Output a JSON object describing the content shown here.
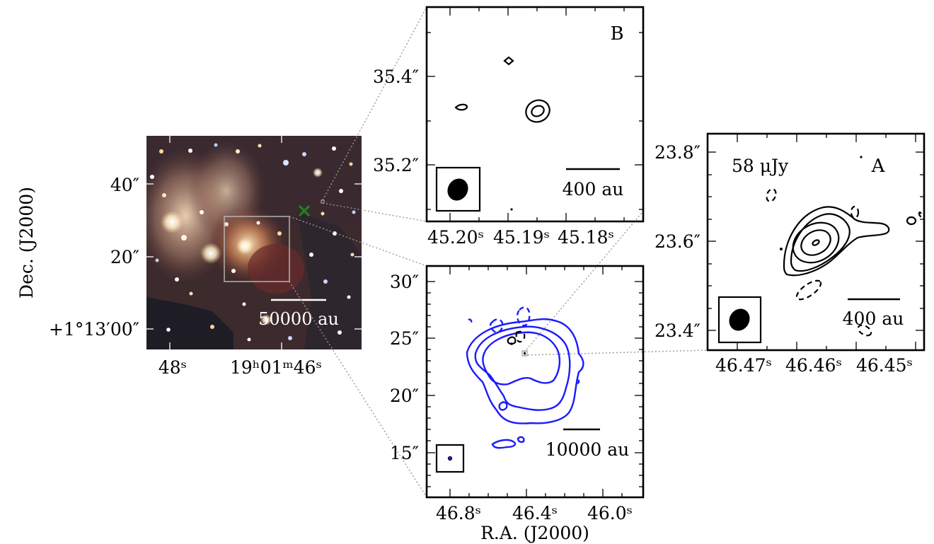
{
  "axis_labels": {
    "y": "Dec. (J2000)",
    "x": "R.A. (J2000)"
  },
  "colors": {
    "contour_black": "#000000",
    "contour_blue": "#1a1aff",
    "source_marker": "#1a8a1a",
    "zoom_lines": "#999999"
  },
  "image_panel": {
    "y_ticks": [
      "40″",
      "20″",
      "+1°13′00″"
    ],
    "x_ticks": [
      "48ˢ",
      "19ʰ01ᵐ46ˢ"
    ],
    "scalebar": "50000 au"
  },
  "panel_b": {
    "label": "B",
    "y_ticks": [
      "35.4″",
      "35.2″"
    ],
    "x_ticks": [
      "45.20ˢ",
      "45.19ˢ",
      "45.18ˢ"
    ],
    "scalebar": "400 au"
  },
  "panel_mid": {
    "y_ticks": [
      "30″",
      "25″",
      "20″",
      "15″"
    ],
    "x_ticks": [
      "46.8ˢ",
      "46.4ˢ",
      "46.0ˢ"
    ],
    "scalebar": "10000 au"
  },
  "panel_a": {
    "label": "A",
    "flux": "58 μJy",
    "y_ticks": [
      "23.8″",
      "23.6″",
      "23.4″"
    ],
    "x_ticks": [
      "46.47ˢ",
      "46.46ˢ",
      "46.45ˢ"
    ],
    "scalebar": "400 au"
  }
}
